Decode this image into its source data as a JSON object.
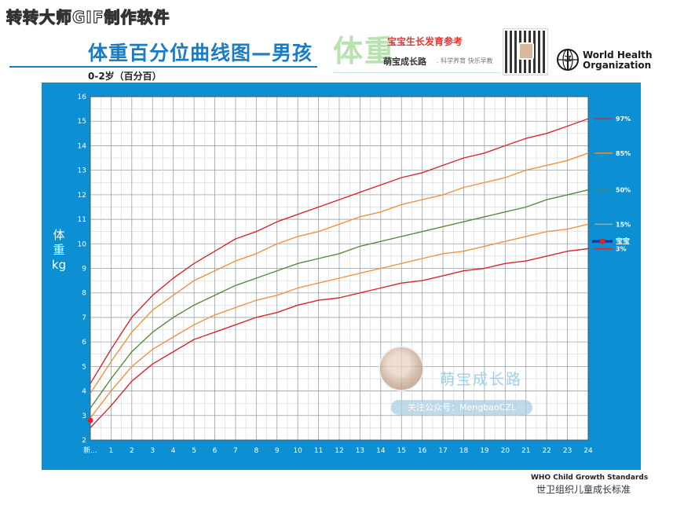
{
  "watermark_top": "转转大师GIF制作软件",
  "header": {
    "title": "体重百分位曲线图—男孩",
    "subtitle": "0-2岁（百分百）",
    "brand_big": "体重",
    "brand_tagline": "宝宝生长发育参考",
    "brand_name": "萌宝成长路",
    "brand_slogan": ". 科学养育 快乐早教",
    "who_line1": "World Health",
    "who_line2": "Organization"
  },
  "watermark": {
    "name": "萌宝成长路",
    "follow": "关注公众号：MengbaoCZL"
  },
  "footer": {
    "en": "WHO Child Growth Standards",
    "cn": "世卫组织儿童成长标准"
  },
  "colors": {
    "panel": "#0d8fd4",
    "p97": "#d9262a",
    "p85": "#f0923e",
    "p50": "#5a8a3a",
    "p15": "#f0923e",
    "p3": "#d9262a",
    "baby": "#1239a8",
    "baby_point": "#e8201e"
  },
  "chart_data": {
    "type": "line",
    "title": "体重百分位曲线图—男孩",
    "subtitle": "0-2岁（百分百）",
    "ylabel": "体重 kg",
    "xlabel": "",
    "x_tick_labels": [
      "新...",
      "1",
      "2",
      "3",
      "4",
      "5",
      "6",
      "7",
      "8",
      "9",
      "10",
      "11",
      "12",
      "13",
      "14",
      "15",
      "16",
      "17",
      "18",
      "19",
      "20",
      "21",
      "22",
      "23",
      "24"
    ],
    "x": [
      0,
      1,
      2,
      3,
      4,
      5,
      6,
      7,
      8,
      9,
      10,
      11,
      12,
      13,
      14,
      15,
      16,
      17,
      18,
      19,
      20,
      21,
      22,
      23,
      24
    ],
    "xlim": [
      0,
      24
    ],
    "ylim": [
      2,
      16
    ],
    "y_ticks": [
      2,
      3,
      4,
      5,
      6,
      7,
      8,
      9,
      10,
      11,
      12,
      13,
      14,
      15,
      16
    ],
    "grid": true,
    "legend_position": "right",
    "series": [
      {
        "name": "97%",
        "color_key": "p97",
        "values": [
          4.3,
          5.7,
          7.0,
          7.9,
          8.6,
          9.2,
          9.7,
          10.2,
          10.5,
          10.9,
          11.2,
          11.5,
          11.8,
          12.1,
          12.4,
          12.7,
          12.9,
          13.2,
          13.5,
          13.7,
          14.0,
          14.3,
          14.5,
          14.8,
          15.1
        ]
      },
      {
        "name": "85%",
        "color_key": "p85",
        "values": [
          3.9,
          5.2,
          6.4,
          7.3,
          7.9,
          8.5,
          8.9,
          9.3,
          9.6,
          10.0,
          10.3,
          10.5,
          10.8,
          11.1,
          11.3,
          11.6,
          11.8,
          12.0,
          12.3,
          12.5,
          12.7,
          13.0,
          13.2,
          13.4,
          13.7
        ]
      },
      {
        "name": "50%",
        "color_key": "p50",
        "values": [
          3.3,
          4.5,
          5.6,
          6.4,
          7.0,
          7.5,
          7.9,
          8.3,
          8.6,
          8.9,
          9.2,
          9.4,
          9.6,
          9.9,
          10.1,
          10.3,
          10.5,
          10.7,
          10.9,
          11.1,
          11.3,
          11.5,
          11.8,
          12.0,
          12.2
        ]
      },
      {
        "name": "15%",
        "color_key": "p15",
        "values": [
          2.9,
          4.0,
          5.0,
          5.7,
          6.2,
          6.7,
          7.1,
          7.4,
          7.7,
          7.9,
          8.2,
          8.4,
          8.6,
          8.8,
          9.0,
          9.2,
          9.4,
          9.6,
          9.7,
          9.9,
          10.1,
          10.3,
          10.5,
          10.6,
          10.8
        ]
      },
      {
        "name": "3%",
        "color_key": "p3",
        "values": [
          2.5,
          3.4,
          4.4,
          5.1,
          5.6,
          6.1,
          6.4,
          6.7,
          7.0,
          7.2,
          7.5,
          7.7,
          7.8,
          8.0,
          8.2,
          8.4,
          8.5,
          8.7,
          8.9,
          9.0,
          9.2,
          9.3,
          9.5,
          9.7,
          9.8
        ]
      }
    ],
    "baby": {
      "name": "宝宝",
      "points": [
        {
          "x": 0,
          "y": 2.8
        }
      ]
    }
  }
}
